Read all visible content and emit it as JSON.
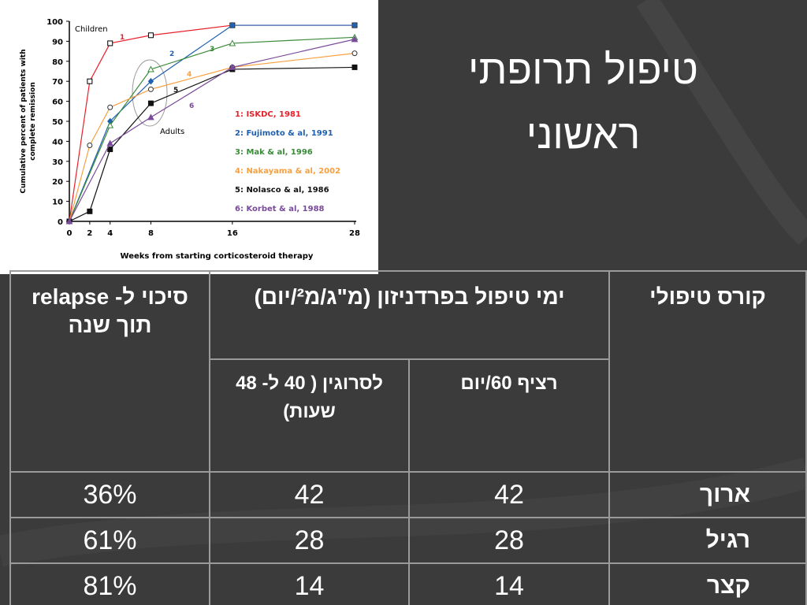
{
  "title": "טיפול תרופתי ראשוני",
  "chart_data": {
    "type": "line",
    "ylabel": [
      "Cumulative percent of patients with",
      "complete remission"
    ],
    "xlabel": "Weeks from starting corticosteroid therapy",
    "annotations": [
      "Children",
      "Adults"
    ],
    "xlim": [
      0,
      28
    ],
    "xticks": [
      0,
      2,
      4,
      8,
      16,
      28
    ],
    "ylim": [
      0,
      100
    ],
    "yticks": [
      0,
      10,
      20,
      30,
      40,
      50,
      60,
      70,
      80,
      90,
      100
    ],
    "series": [
      {
        "name": "1: ISKDC, 1981",
        "label": "1",
        "color": "#e8202a",
        "marker": "square-open",
        "x": [
          0,
          2,
          4,
          8,
          16,
          28
        ],
        "values": [
          0,
          70,
          89,
          93,
          98,
          98
        ]
      },
      {
        "name": "2: Fujimoto & al, 1991",
        "label": "2",
        "color": "#2060b0",
        "marker": "diamond",
        "x": [
          0,
          4,
          8,
          16,
          28
        ],
        "values": [
          0,
          50,
          70,
          98,
          98
        ]
      },
      {
        "name": "3: Mak & al, 1996",
        "label": "3",
        "color": "#3a8a3a",
        "marker": "triangle-open",
        "x": [
          0,
          4,
          8,
          16,
          28
        ],
        "values": [
          0,
          48,
          76,
          89,
          92
        ]
      },
      {
        "name": "4: Nakayama & al, 2002",
        "label": "4",
        "color": "#f7a040",
        "marker": "circle-open",
        "x": [
          0,
          2,
          4,
          8,
          16,
          28
        ],
        "values": [
          0,
          38,
          57,
          66,
          77,
          84
        ]
      },
      {
        "name": "5: Nolasco & al, 1986",
        "label": "5",
        "color": "#111111",
        "marker": "square",
        "x": [
          0,
          2,
          4,
          8,
          16,
          28
        ],
        "values": [
          0,
          5,
          36,
          59,
          76,
          77
        ]
      },
      {
        "name": "6: Korbet & al, 1988",
        "label": "6",
        "color": "#7a4a9a",
        "marker": "triangle",
        "x": [
          0,
          4,
          8,
          16,
          28
        ],
        "values": [
          0,
          39,
          52,
          77,
          91
        ]
      }
    ]
  },
  "table": {
    "header": {
      "course": "קורס טיפולי",
      "days": "ימי טיפול בפרדניזון (מ\"ג/מ²/יום)",
      "continuous": "רציף 60/יום",
      "alternate": "לסרוגין ( 40 ל- 48 שעות)",
      "relapse": "סיכוי ל- relapse תוך שנה"
    },
    "rows": [
      [
        "ארוך",
        "42",
        "42",
        "36%"
      ],
      [
        "רגיל",
        "28",
        "28",
        "61%"
      ],
      [
        "קצר",
        "14",
        "14",
        "81%"
      ]
    ]
  }
}
